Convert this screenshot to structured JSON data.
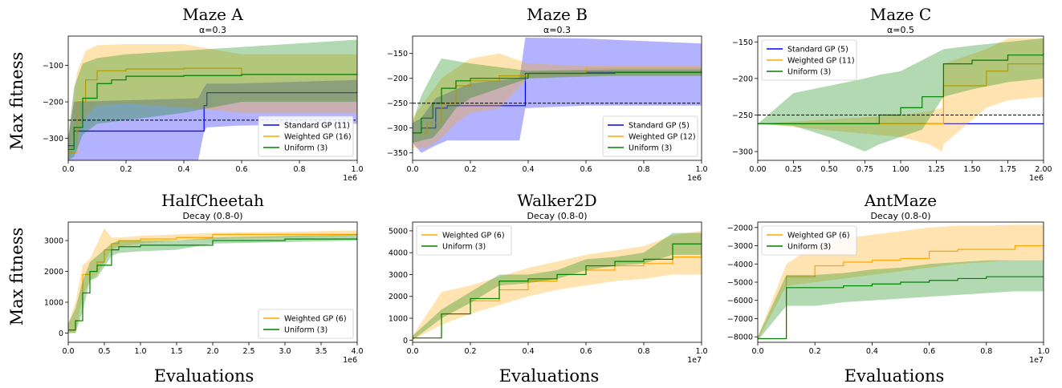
{
  "figure": {
    "row_ylabel": "Max fitness",
    "col_xlabel": "Evaluations"
  },
  "colors": {
    "standard": "#0000ff",
    "weighted": "#ffa500",
    "uniform": "#008000",
    "threshold": "#000000"
  },
  "chart_data": [
    {
      "type": "line",
      "title": "Maze A",
      "subtitle": "α=0.3",
      "xlim": [
        0,
        1000000
      ],
      "ylim": [
        -360,
        -20
      ],
      "xticks": [
        0,
        200000,
        400000,
        600000,
        800000,
        1000000
      ],
      "xtick_labels": [
        "0.0",
        "0.2",
        "0.4",
        "0.6",
        "0.8",
        "1.0"
      ],
      "yticks": [
        -300,
        -200,
        -100
      ],
      "ytick_labels": [
        "−300",
        "−200",
        "−100"
      ],
      "offset_text": "1e6",
      "threshold": -250,
      "legend": "bottom-right",
      "series": [
        {
          "name": "Standard GP (11)",
          "key": "standard",
          "x": [
            0,
            20000,
            450000,
            470000,
            480000,
            580000,
            1000000
          ],
          "y": [
            -320,
            -280,
            -280,
            -210,
            -175,
            -175,
            -170
          ],
          "lo": [
            -360,
            -360,
            -360,
            -280,
            -270,
            -265,
            -260
          ],
          "hi": [
            -300,
            -200,
            -190,
            -160,
            -150,
            -150,
            -140
          ]
        },
        {
          "name": "Weighted GP (16)",
          "key": "weighted",
          "x": [
            0,
            30000,
            60000,
            100000,
            200000,
            400000,
            600000,
            1000000
          ],
          "y": [
            -340,
            -200,
            -140,
            -115,
            -110,
            -108,
            -125,
            -125
          ],
          "lo": [
            -360,
            -300,
            -240,
            -210,
            -205,
            -215,
            -230,
            -230
          ],
          "hi": [
            -300,
            -120,
            -60,
            -45,
            -42,
            -42,
            -70,
            -70
          ]
        },
        {
          "name": "Uniform (3)",
          "key": "uniform",
          "x": [
            0,
            20000,
            50000,
            100000,
            150000,
            200000,
            400000,
            600000,
            1000000
          ],
          "y": [
            -330,
            -270,
            -190,
            -150,
            -140,
            -130,
            -128,
            -125,
            -125
          ],
          "lo": [
            -360,
            -350,
            -290,
            -260,
            -255,
            -250,
            -230,
            -200,
            -200
          ],
          "hi": [
            -300,
            -160,
            -95,
            -80,
            -75,
            -70,
            -60,
            -50,
            -30
          ]
        }
      ]
    },
    {
      "type": "line",
      "title": "Maze B",
      "subtitle": "α=0.3",
      "xlim": [
        0,
        1000000
      ],
      "ylim": [
        -365,
        -115
      ],
      "xticks": [
        0,
        200000,
        400000,
        600000,
        800000,
        1000000
      ],
      "xtick_labels": [
        "0.0",
        "0.2",
        "0.4",
        "0.6",
        "0.8",
        "1.0"
      ],
      "yticks": [
        -350,
        -300,
        -250,
        -200,
        -150
      ],
      "ytick_labels": [
        "−350",
        "−300",
        "−250",
        "−200",
        "−150"
      ],
      "offset_text": "1e6",
      "threshold": -250,
      "legend": "bottom-right",
      "series": [
        {
          "name": "Standard GP (5)",
          "key": "standard",
          "x": [
            0,
            30000,
            80000,
            120000,
            200000,
            370000,
            390000,
            600000,
            1000000
          ],
          "y": [
            -310,
            -300,
            -260,
            -255,
            -255,
            -255,
            -190,
            -188,
            -185
          ],
          "lo": [
            -330,
            -350,
            -335,
            -325,
            -325,
            -325,
            -260,
            -255,
            -255
          ],
          "hi": [
            -290,
            -280,
            -240,
            -230,
            -210,
            -200,
            -118,
            -120,
            -130
          ]
        },
        {
          "name": "Weighted GP (12)",
          "key": "weighted",
          "x": [
            0,
            50000,
            100000,
            150000,
            200000,
            300000,
            400000,
            600000,
            1000000
          ],
          "y": [
            -310,
            -290,
            -250,
            -215,
            -205,
            -195,
            -190,
            -180,
            -180
          ],
          "lo": [
            -340,
            -340,
            -320,
            -290,
            -270,
            -260,
            -200,
            -195,
            -195
          ],
          "hi": [
            -280,
            -240,
            -200,
            -180,
            -160,
            -150,
            -170,
            -175,
            -175
          ]
        },
        {
          "name": "Uniform (3)",
          "key": "uniform",
          "x": [
            0,
            30000,
            70000,
            100000,
            150000,
            200000,
            400000,
            700000,
            1000000
          ],
          "y": [
            -310,
            -280,
            -250,
            -220,
            -205,
            -200,
            -190,
            -188,
            -188
          ],
          "lo": [
            -330,
            -325,
            -320,
            -300,
            -260,
            -240,
            -200,
            -195,
            -195
          ],
          "hi": [
            -290,
            -235,
            -190,
            -160,
            -165,
            -170,
            -185,
            -182,
            -182
          ]
        }
      ]
    },
    {
      "type": "line",
      "title": "Maze C",
      "subtitle": "α=0.5",
      "xlim": [
        0,
        2000000
      ],
      "ylim": [
        -312,
        -142
      ],
      "xticks": [
        0,
        250000,
        500000,
        750000,
        1000000,
        1250000,
        1500000,
        1750000,
        2000000
      ],
      "xtick_labels": [
        "0.00",
        "0.25",
        "0.50",
        "0.75",
        "1.00",
        "1.25",
        "1.50",
        "1.75",
        "2.00"
      ],
      "yticks": [
        -300,
        -250,
        -200,
        -150
      ],
      "ytick_labels": [
        "−300",
        "−250",
        "−200",
        "−150"
      ],
      "offset_text": "1e6",
      "threshold": -250,
      "legend": "top-left",
      "series": [
        {
          "name": "Standard GP (5)",
          "key": "standard",
          "x": [
            0,
            2000000
          ],
          "y": [
            -262,
            -262
          ],
          "lo": [
            -262,
            -262
          ],
          "hi": [
            -262,
            -262
          ]
        },
        {
          "name": "Weighted GP (11)",
          "key": "weighted",
          "x": [
            0,
            1000000,
            1200000,
            1290000,
            1300000,
            1600000,
            1750000,
            2000000
          ],
          "y": [
            -262,
            -262,
            -262,
            -262,
            -210,
            -190,
            -180,
            -180
          ],
          "lo": [
            -262,
            -280,
            -290,
            -300,
            -290,
            -240,
            -230,
            -225
          ],
          "hi": [
            -262,
            -250,
            -245,
            -240,
            -180,
            -160,
            -145,
            -145
          ]
        },
        {
          "name": "Uniform (3)",
          "key": "uniform",
          "x": [
            0,
            250000,
            500000,
            750000,
            850000,
            1000000,
            1150000,
            1300000,
            1500000,
            1750000,
            2000000
          ],
          "y": [
            -262,
            -262,
            -262,
            -262,
            -250,
            -240,
            -225,
            -180,
            -175,
            -168,
            -165
          ],
          "lo": [
            -262,
            -265,
            -280,
            -300,
            -290,
            -280,
            -270,
            -225,
            -215,
            -205,
            -200
          ],
          "hi": [
            -262,
            -220,
            -210,
            -200,
            -195,
            -190,
            -175,
            -160,
            -155,
            -150,
            -145
          ]
        }
      ]
    },
    {
      "type": "line",
      "title": "HalfCheetah",
      "subtitle": "Decay (0.8-0)",
      "xlim": [
        0,
        4000000
      ],
      "ylim": [
        -300,
        3600
      ],
      "xticks": [
        0,
        500000,
        1000000,
        1500000,
        2000000,
        2500000,
        3000000,
        3500000,
        4000000
      ],
      "xtick_labels": [
        "0.0",
        "0.5",
        "1.0",
        "1.5",
        "2.0",
        "2.5",
        "3.0",
        "3.5",
        "4.0"
      ],
      "yticks": [
        0,
        1000,
        2000,
        3000
      ],
      "ytick_labels": [
        "0",
        "1000",
        "2000",
        "3000"
      ],
      "offset_text": "1e6",
      "legend": "bottom-right",
      "series": [
        {
          "name": "Weighted GP (6)",
          "key": "weighted",
          "x": [
            0,
            100000,
            200000,
            300000,
            400000,
            500000,
            600000,
            700000,
            1000000,
            1500000,
            2000000,
            3000000,
            4000000
          ],
          "y": [
            100,
            400,
            1900,
            2000,
            2300,
            2700,
            2900,
            3000,
            3050,
            3100,
            3200,
            3200,
            3250
          ],
          "lo": [
            0,
            0,
            1200,
            1700,
            1900,
            2300,
            2700,
            2800,
            2900,
            3000,
            3050,
            3100,
            3150
          ],
          "hi": [
            300,
            1000,
            2200,
            2400,
            2900,
            3400,
            3100,
            3100,
            3150,
            3200,
            3250,
            3280,
            3330
          ]
        },
        {
          "name": "Uniform (3)",
          "key": "uniform",
          "x": [
            0,
            100000,
            200000,
            300000,
            400000,
            600000,
            700000,
            1000000,
            1500000,
            2000000,
            3000000,
            4000000
          ],
          "y": [
            100,
            400,
            1300,
            2000,
            2200,
            2700,
            2800,
            2850,
            2850,
            3000,
            3050,
            3100
          ],
          "lo": [
            0,
            0,
            700,
            1700,
            1800,
            2500,
            2600,
            2650,
            2700,
            2900,
            2950,
            3000
          ],
          "hi": [
            300,
            800,
            1700,
            2300,
            2500,
            2900,
            3000,
            3000,
            3000,
            3100,
            3150,
            3200
          ]
        }
      ]
    },
    {
      "type": "line",
      "title": "Walker2D",
      "subtitle": "Decay (0.8-0)",
      "xlim": [
        0,
        10000000
      ],
      "ylim": [
        -100,
        5400
      ],
      "xticks": [
        0,
        2000000,
        4000000,
        6000000,
        8000000,
        10000000
      ],
      "xtick_labels": [
        "0.0",
        "0.2",
        "0.4",
        "0.6",
        "0.8",
        "1.0"
      ],
      "yticks": [
        0,
        1000,
        2000,
        3000,
        4000,
        5000
      ],
      "ytick_labels": [
        "0",
        "1000",
        "2000",
        "3000",
        "4000",
        "5000"
      ],
      "offset_text": "1e7",
      "legend": "top-left",
      "series": [
        {
          "name": "Weighted GP (6)",
          "key": "weighted",
          "x": [
            0,
            1000000,
            2000000,
            3000000,
            4000000,
            5000000,
            6000000,
            7000000,
            8000000,
            9000000,
            10000000
          ],
          "y": [
            100,
            1200,
            1800,
            2300,
            2700,
            3000,
            3200,
            3400,
            3500,
            3800,
            3900
          ],
          "lo": [
            0,
            700,
            1200,
            1600,
            2000,
            2300,
            2500,
            2700,
            2800,
            3000,
            3000
          ],
          "hi": [
            200,
            2200,
            2500,
            2900,
            3300,
            3600,
            3900,
            4100,
            4300,
            4800,
            5000
          ]
        },
        {
          "name": "Uniform (3)",
          "key": "uniform",
          "x": [
            0,
            1000000,
            2000000,
            3000000,
            4000000,
            5000000,
            6000000,
            7000000,
            8000000,
            9000000,
            10000000
          ],
          "y": [
            100,
            1200,
            1900,
            2700,
            2800,
            3000,
            3400,
            3600,
            3700,
            4400,
            4400
          ],
          "lo": [
            0,
            1000,
            1700,
            2500,
            2600,
            2800,
            3200,
            3400,
            3500,
            3900,
            3900
          ],
          "hi": [
            200,
            1400,
            2200,
            3000,
            3000,
            3200,
            3700,
            3800,
            4000,
            4900,
            4900
          ]
        }
      ]
    },
    {
      "type": "line",
      "title": "AntMaze",
      "subtitle": "Decay (0.8-0)",
      "xlim": [
        0,
        10000000
      ],
      "ylim": [
        -8300,
        -1700
      ],
      "xticks": [
        0,
        2000000,
        4000000,
        6000000,
        8000000,
        10000000
      ],
      "xtick_labels": [
        "0.0",
        "0.2",
        "0.4",
        "0.6",
        "0.8",
        "1.0"
      ],
      "yticks": [
        -8000,
        -7000,
        -6000,
        -5000,
        -4000,
        -3000,
        -2000
      ],
      "ytick_labels": [
        "−8000",
        "−7000",
        "−6000",
        "−5000",
        "−4000",
        "−3000",
        "−2000"
      ],
      "offset_text": "1e7",
      "legend": "top-left",
      "series": [
        {
          "name": "Weighted GP (6)",
          "key": "weighted",
          "x": [
            0,
            1000000,
            2000000,
            3000000,
            4000000,
            5000000,
            6000000,
            7000000,
            8000000,
            9000000,
            10000000
          ],
          "y": [
            -8100,
            -4700,
            -4100,
            -3900,
            -3800,
            -3700,
            -3300,
            -3200,
            -3200,
            -3000,
            -3000
          ],
          "lo": [
            -8200,
            -5200,
            -5000,
            -4800,
            -4600,
            -4400,
            -4200,
            -4000,
            -3900,
            -3800,
            -3800
          ],
          "hi": [
            -8000,
            -4000,
            -3000,
            -2600,
            -2400,
            -2200,
            -2000,
            -1900,
            -1900,
            -1850,
            -1850
          ]
        },
        {
          "name": "Uniform (3)",
          "key": "uniform",
          "x": [
            0,
            1000000,
            2000000,
            3000000,
            4000000,
            5000000,
            6000000,
            7000000,
            8000000,
            9000000,
            10000000
          ],
          "y": [
            -8100,
            -5300,
            -5300,
            -5200,
            -5100,
            -5000,
            -4900,
            -4800,
            -4700,
            -4700,
            -4700
          ],
          "lo": [
            -8200,
            -6300,
            -6300,
            -6100,
            -6000,
            -5900,
            -5800,
            -5700,
            -5600,
            -5500,
            -5500
          ],
          "hi": [
            -8000,
            -4600,
            -4600,
            -4500,
            -4300,
            -4200,
            -4000,
            -3900,
            -3800,
            -3800,
            -3800
          ]
        }
      ]
    }
  ]
}
